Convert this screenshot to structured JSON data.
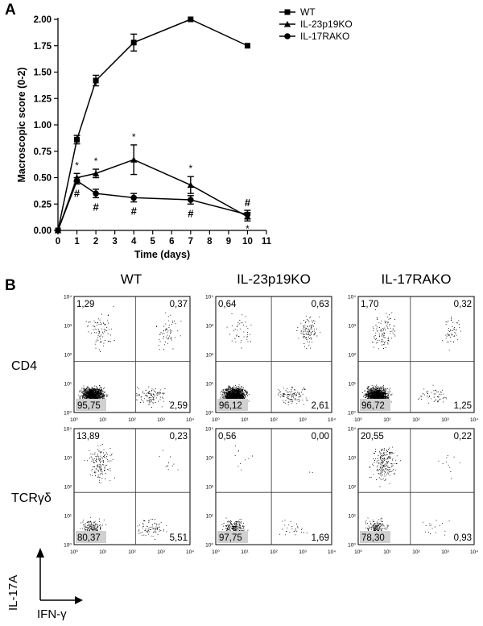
{
  "panels": {
    "a": "A",
    "b": "B"
  },
  "chart_data": [
    {
      "type": "line",
      "xlabel": "Time (days)",
      "ylabel": "Macroscopic score (0-2)",
      "xlim": [
        0,
        11
      ],
      "ylim": [
        0,
        2.0
      ],
      "x_ticks": [
        0,
        1,
        2,
        3,
        4,
        5,
        6,
        7,
        8,
        9,
        10,
        11
      ],
      "y_ticks": [
        "0.00",
        "0.25",
        "0.50",
        "0.75",
        "1.00",
        "1.25",
        "1.50",
        "1.75",
        "2.00"
      ],
      "legend_position": "top-right",
      "series": [
        {
          "name": "WT",
          "marker": "square",
          "x": [
            0,
            1,
            2,
            4,
            7,
            10
          ],
          "y": [
            0.0,
            0.86,
            1.42,
            1.78,
            2.0,
            1.75
          ],
          "err": [
            0,
            0.04,
            0.05,
            0.08,
            0.0,
            0.0
          ],
          "annotations": []
        },
        {
          "name": "IL-23p19KO",
          "marker": "triangle",
          "x": [
            0,
            1,
            2,
            4,
            7,
            10
          ],
          "y": [
            0.0,
            0.5,
            0.54,
            0.67,
            0.43,
            0.13
          ],
          "err": [
            0,
            0.04,
            0.04,
            0.14,
            0.08,
            0.04
          ],
          "annotations": [
            "",
            "*",
            "*",
            "*",
            "*",
            "*"
          ]
        },
        {
          "name": "IL-17RAKO",
          "marker": "circle",
          "x": [
            0,
            1,
            2,
            4,
            7,
            10
          ],
          "y": [
            0.0,
            0.47,
            0.35,
            0.31,
            0.29,
            0.15
          ],
          "err": [
            0,
            0.03,
            0.04,
            0.04,
            0.04,
            0.04
          ],
          "annotations": [
            "",
            "#",
            "#",
            "#",
            "#",
            "#"
          ]
        }
      ]
    },
    {
      "type": "scatter",
      "columns": [
        "WT",
        "IL-23p19KO",
        "IL-17RAKO"
      ],
      "rows": [
        "CD4",
        "TCRγδ"
      ],
      "xlabel": "IFN-γ",
      "ylabel": "IL-17A",
      "log_scale": true,
      "tick_labels": [
        "10⁰",
        "10¹",
        "10²",
        "10³",
        "10⁴"
      ],
      "quadrants": [
        [
          {
            "ul": "1,29",
            "ur": "0,37",
            "ll": "95,75",
            "lr": "2,59"
          },
          {
            "ul": "0,64",
            "ur": "0,63",
            "ll": "96,12",
            "lr": "2,61"
          },
          {
            "ul": "1,70",
            "ur": "0,32",
            "ll": "96,72",
            "lr": "1,25"
          }
        ],
        [
          {
            "ul": "13,89",
            "ur": "0,23",
            "ll": "80,37",
            "lr": "5,51"
          },
          {
            "ul": "0,56",
            "ur": "0,00",
            "ll": "97,75",
            "lr": "1,69"
          },
          {
            "ul": "20,55",
            "ur": "0,22",
            "ll": "78,30",
            "lr": "0,93"
          }
        ]
      ]
    }
  ]
}
